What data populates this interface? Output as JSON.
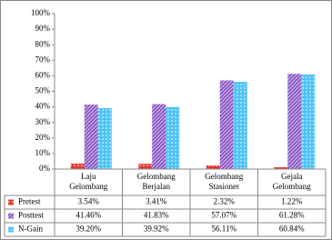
{
  "chart_data": {
    "type": "bar",
    "categories": [
      "Laju\nGelombang",
      "Gelombang\nBerjalan",
      "Gelombang\nStasioner",
      "Gejala\nGelombang"
    ],
    "series": [
      {
        "name": "Pretest",
        "color": "#e53935",
        "values": [
          3.54,
          3.41,
          2.32,
          1.22
        ],
        "value_labels": [
          "3.54%",
          "3.41%",
          "2.32%",
          "1.22%"
        ]
      },
      {
        "name": "Posttest",
        "color": "#8e5cc8",
        "values": [
          41.46,
          41.83,
          57.07,
          61.28
        ],
        "value_labels": [
          "41.46%",
          "41.83%",
          "57.07%",
          "61.28%"
        ]
      },
      {
        "name": "N-Gain",
        "color": "#4fc3f7",
        "values": [
          39.2,
          39.92,
          56.11,
          60.84
        ],
        "value_labels": [
          "39.20%",
          "39.92%",
          "56.11%",
          "60.84%"
        ]
      }
    ],
    "ylim": [
      0,
      100
    ],
    "yticks": [
      {
        "value": 0,
        "label": "0%"
      },
      {
        "value": 10,
        "label": "10%"
      },
      {
        "value": 20,
        "label": "20%"
      },
      {
        "value": 30,
        "label": "30%"
      },
      {
        "value": 40,
        "label": "40%"
      },
      {
        "value": 50,
        "label": "50%"
      },
      {
        "value": 60,
        "label": "60%"
      },
      {
        "value": 70,
        "label": "70%"
      },
      {
        "value": 80,
        "label": "80%"
      },
      {
        "value": 90,
        "label": "90%"
      },
      {
        "value": 100,
        "label": "100%"
      }
    ],
    "grid": false
  }
}
